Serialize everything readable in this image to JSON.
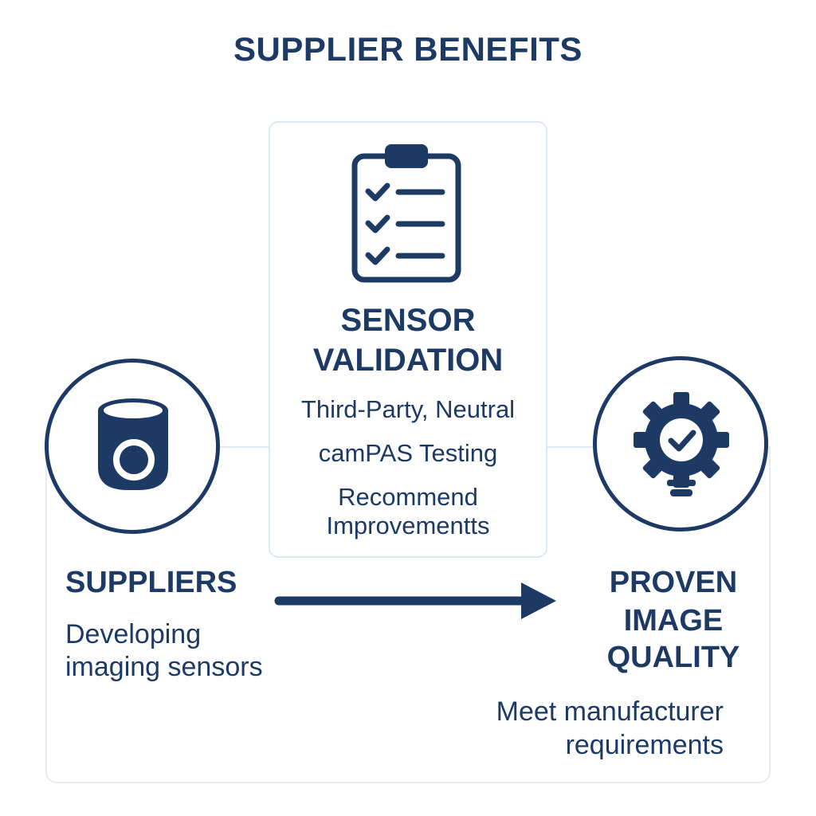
{
  "title": "SUPPLIER BENEFITS",
  "colors": {
    "primary": "#1c3a64",
    "frame": "#e3edf6",
    "background": "#ffffff"
  },
  "center": {
    "icon": "clipboard-checklist-icon",
    "title_line1": "SENSOR",
    "title_line2": "VALIDATION",
    "line1": "Third-Party, Neutral",
    "line2": "camPAS Testing",
    "line3": "Recommend",
    "line4": "Improvementts"
  },
  "left": {
    "icon": "camera-sensor-icon",
    "title": "SUPPLIERS",
    "desc_line1": "Developing",
    "desc_line2": "imaging sensors"
  },
  "right": {
    "icon": "gear-check-bulb-icon",
    "title_line1": "PROVEN",
    "title_line2": "IMAGE",
    "title_line3": "QUALITY",
    "desc_line1": "Meet manufacturer",
    "desc_line2": "requirements"
  },
  "flow": {
    "icon": "arrow-right-icon"
  }
}
